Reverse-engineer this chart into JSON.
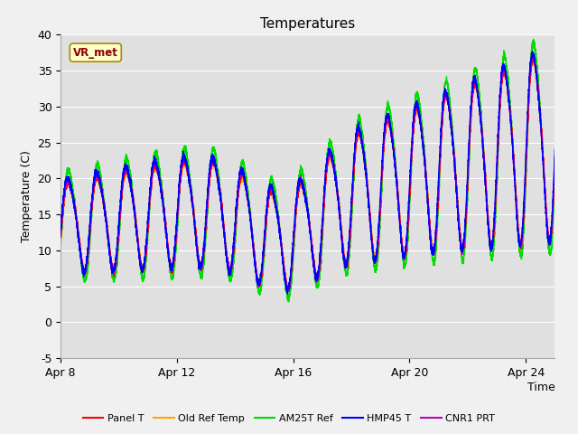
{
  "title": "Temperatures",
  "xlabel": "Time",
  "ylabel": "Temperature (C)",
  "ylim": [
    -5,
    40
  ],
  "xlim": [
    0,
    17
  ],
  "annotation_text": "VR_met",
  "x_ticks": [
    0,
    4,
    8,
    12,
    16
  ],
  "x_tick_labels": [
    "Apr 8",
    "Apr 12",
    "Apr 16",
    "Apr 20",
    "Apr 24"
  ],
  "y_ticks": [
    -5,
    0,
    5,
    10,
    15,
    20,
    25,
    30,
    35,
    40
  ],
  "series_colors": {
    "Panel T": "#ff0000",
    "Old Ref Temp": "#ffa500",
    "AM25T Ref": "#00dd00",
    "HMP45 T": "#0000ff",
    "CNR1 PRT": "#bb00bb"
  },
  "fig_bg": "#f0f0f0",
  "plot_bg": "#e0e0e0",
  "grid_color": "#ffffff",
  "title_fontsize": 11,
  "axis_fontsize": 9,
  "tick_fontsize": 9,
  "linewidth": 1.0
}
